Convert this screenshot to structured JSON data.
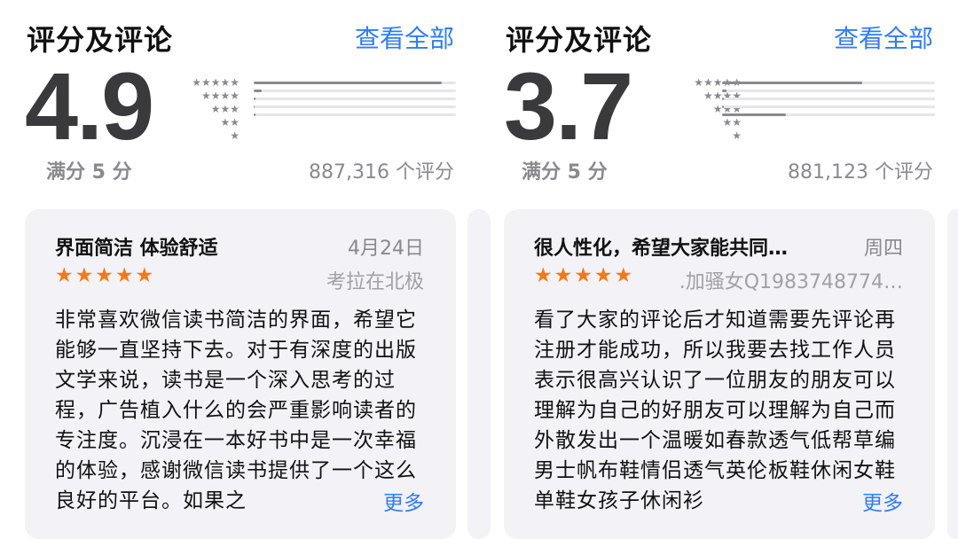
{
  "panels": [
    {
      "section_title": "评分及评论",
      "see_all": "查看全部",
      "score": "4.9",
      "out_of": "满分 5 分",
      "rating_count": "887,316 个评分",
      "star_labels": [
        "★★★★★",
        "★★★★",
        "★★★",
        "★★",
        "★"
      ],
      "distribution": [
        0.93,
        0.04,
        0.01,
        0.005,
        0.01
      ],
      "review": {
        "title": "界面简洁 体验舒适",
        "date": "4月24日",
        "stars": "★★★★★",
        "author": "考拉在北极",
        "body": "非常喜欢微信读书简洁的界面，希望它能够一直坚持下去。对于有深度的出版文学来说，读书是一个深入思考的过程，广告植入什么的会严重影响读者的专注度。沉浸在一本好书中是一次幸福的体验，感谢微信读书提供了一个这么良好的平台。如果之",
        "more": "更多"
      }
    },
    {
      "section_title": "评分及评论",
      "see_all": "查看全部",
      "score": "3.7",
      "out_of": "满分 5 分",
      "rating_count": "881,123 个评分",
      "star_labels": [
        "★★★★★",
        "★★★★",
        "★★★",
        "★★",
        "★"
      ],
      "distribution": [
        0.66,
        0.02,
        0.01,
        0.01,
        0.3
      ],
      "review": {
        "title": "很人性化，希望大家能共同…",
        "date": "周四",
        "stars": "★★★★★",
        "author": ".加骚女Q1983748774…",
        "body": "看了大家的评论后才知道需要先评论再注册才能成功，所以我要去找工作人员表示很高兴认识了一位朋友的朋友可以理解为自己的好朋友可以理解为自己而外散发出一个温暖如春款透气低帮草编男士帆布鞋情侣透气英伦板鞋休闲女鞋单鞋女孩子休闲衫",
        "more": "更多"
      }
    }
  ],
  "colors": {
    "accent": "#2f7df6",
    "star": "#f27a1a",
    "card_bg": "#f2f2f7",
    "bar_fill": "#8a8a8e",
    "secondary_text": "#8a8a8e"
  }
}
